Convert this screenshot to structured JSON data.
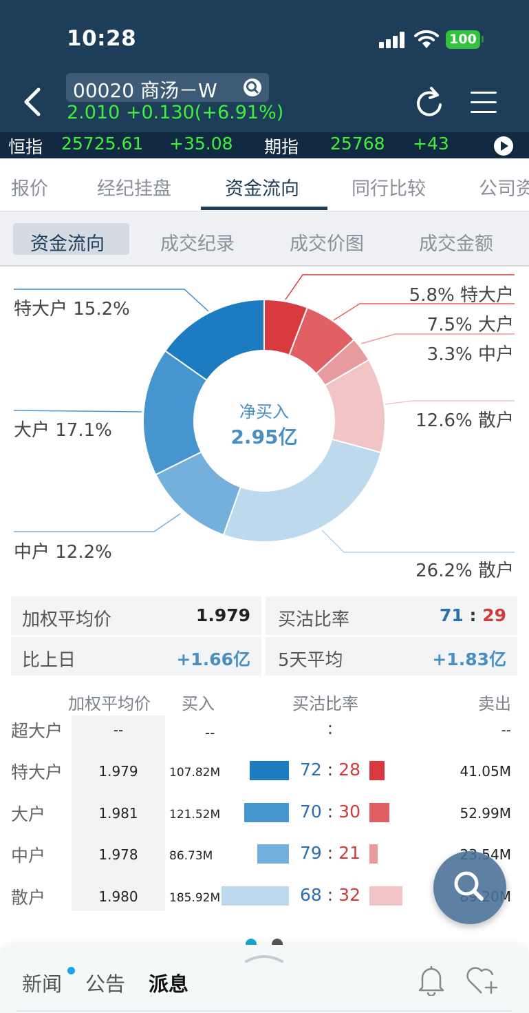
{
  "status_bar": {
    "time": "10:28",
    "battery": "100"
  },
  "header": {
    "stock_name": "00020 商汤－W",
    "stock_price": "2.010 +0.130(+6.91%)"
  },
  "ticker": {
    "hsi_label": "恒指",
    "hsi_value": "25725.61",
    "hsi_change": "+35.08",
    "fut_label": "期指",
    "fut_value": "25768",
    "fut_change": "+43"
  },
  "tabs": [
    "报价",
    "经纪挂盘",
    "资金流向",
    "同行比较",
    "公司资"
  ],
  "subtabs": [
    "资金流向",
    "成交纪录",
    "成交价图",
    "成交金额"
  ],
  "donut": {
    "center_label": "净买入",
    "center_value": "2.95亿",
    "buy_labels": [
      "特大户 15.2%",
      "大户 17.1%",
      "中户 12.2%",
      "26.2% 散户"
    ],
    "sell_labels": [
      "5.8% 特大户",
      "7.5% 大户",
      "3.3% 中户",
      "12.6% 散户"
    ],
    "segments": [
      {
        "name": "特大户卖出",
        "pct": 5.8,
        "color": "#d83a40"
      },
      {
        "name": "大户卖出",
        "pct": 7.5,
        "color": "#e06063"
      },
      {
        "name": "中户卖出",
        "pct": 3.3,
        "color": "#e99a9c"
      },
      {
        "name": "散户卖出",
        "pct": 12.6,
        "color": "#f2c4c6"
      },
      {
        "name": "散户买入",
        "pct": 26.2,
        "color": "#bcd9ee"
      },
      {
        "name": "中户买入",
        "pct": 12.2,
        "color": "#74b0db"
      },
      {
        "name": "大户买入",
        "pct": 17.1,
        "color": "#4695cf"
      },
      {
        "name": "特大户买入",
        "pct": 15.2,
        "color": "#1d7cc1"
      }
    ]
  },
  "summary": {
    "avg_label": "加权平均价",
    "avg_value": "1.979",
    "ratio_label": "买沽比率",
    "ratio_buy": "71",
    "ratio_colon": ":",
    "ratio_sell": "29",
    "prev_label": "比上日",
    "prev_value": "+1.66亿",
    "avg5_label": "5天平均",
    "avg5_value": "+1.83亿"
  },
  "table": {
    "headers": [
      "加权平均价",
      "买入",
      "买沽比率",
      "卖出"
    ],
    "rows": [
      {
        "name": "超大户",
        "avg": "--",
        "buy": "--",
        "ratio_buy": "",
        "ratio_colon": ":",
        "ratio_sell": "",
        "sell": "--",
        "buy_pct": 0,
        "sell_pct": 0
      },
      {
        "name": "特大户",
        "avg": "1.979",
        "buy": "107.82M",
        "ratio_buy": "72",
        "ratio_colon": ":",
        "ratio_sell": "28",
        "sell": "41.05M",
        "buy_pct": 72,
        "sell_pct": 28
      },
      {
        "name": "大户",
        "avg": "1.981",
        "buy": "121.52M",
        "ratio_buy": "70",
        "ratio_colon": ":",
        "ratio_sell": "30",
        "sell": "52.99M",
        "buy_pct": 70,
        "sell_pct": 30
      },
      {
        "name": "中户",
        "avg": "1.978",
        "buy": "86.73M",
        "ratio_buy": "79",
        "ratio_colon": ":",
        "ratio_sell": "21",
        "sell": "23.54M",
        "buy_pct": 79,
        "sell_pct": 21
      },
      {
        "name": "散户",
        "avg": "1.980",
        "buy": "185.92M",
        "ratio_buy": "68",
        "ratio_colon": ":",
        "ratio_sell": "32",
        "sell": "89.20M",
        "buy_pct": 68,
        "sell_pct": 32
      }
    ]
  },
  "bottom_tabs": [
    "新闻",
    "公告",
    "派息"
  ],
  "icons": [
    "back-icon",
    "search-icon",
    "refresh-icon",
    "menu-icon",
    "play-icon",
    "bell-icon",
    "heart-add-icon"
  ]
}
